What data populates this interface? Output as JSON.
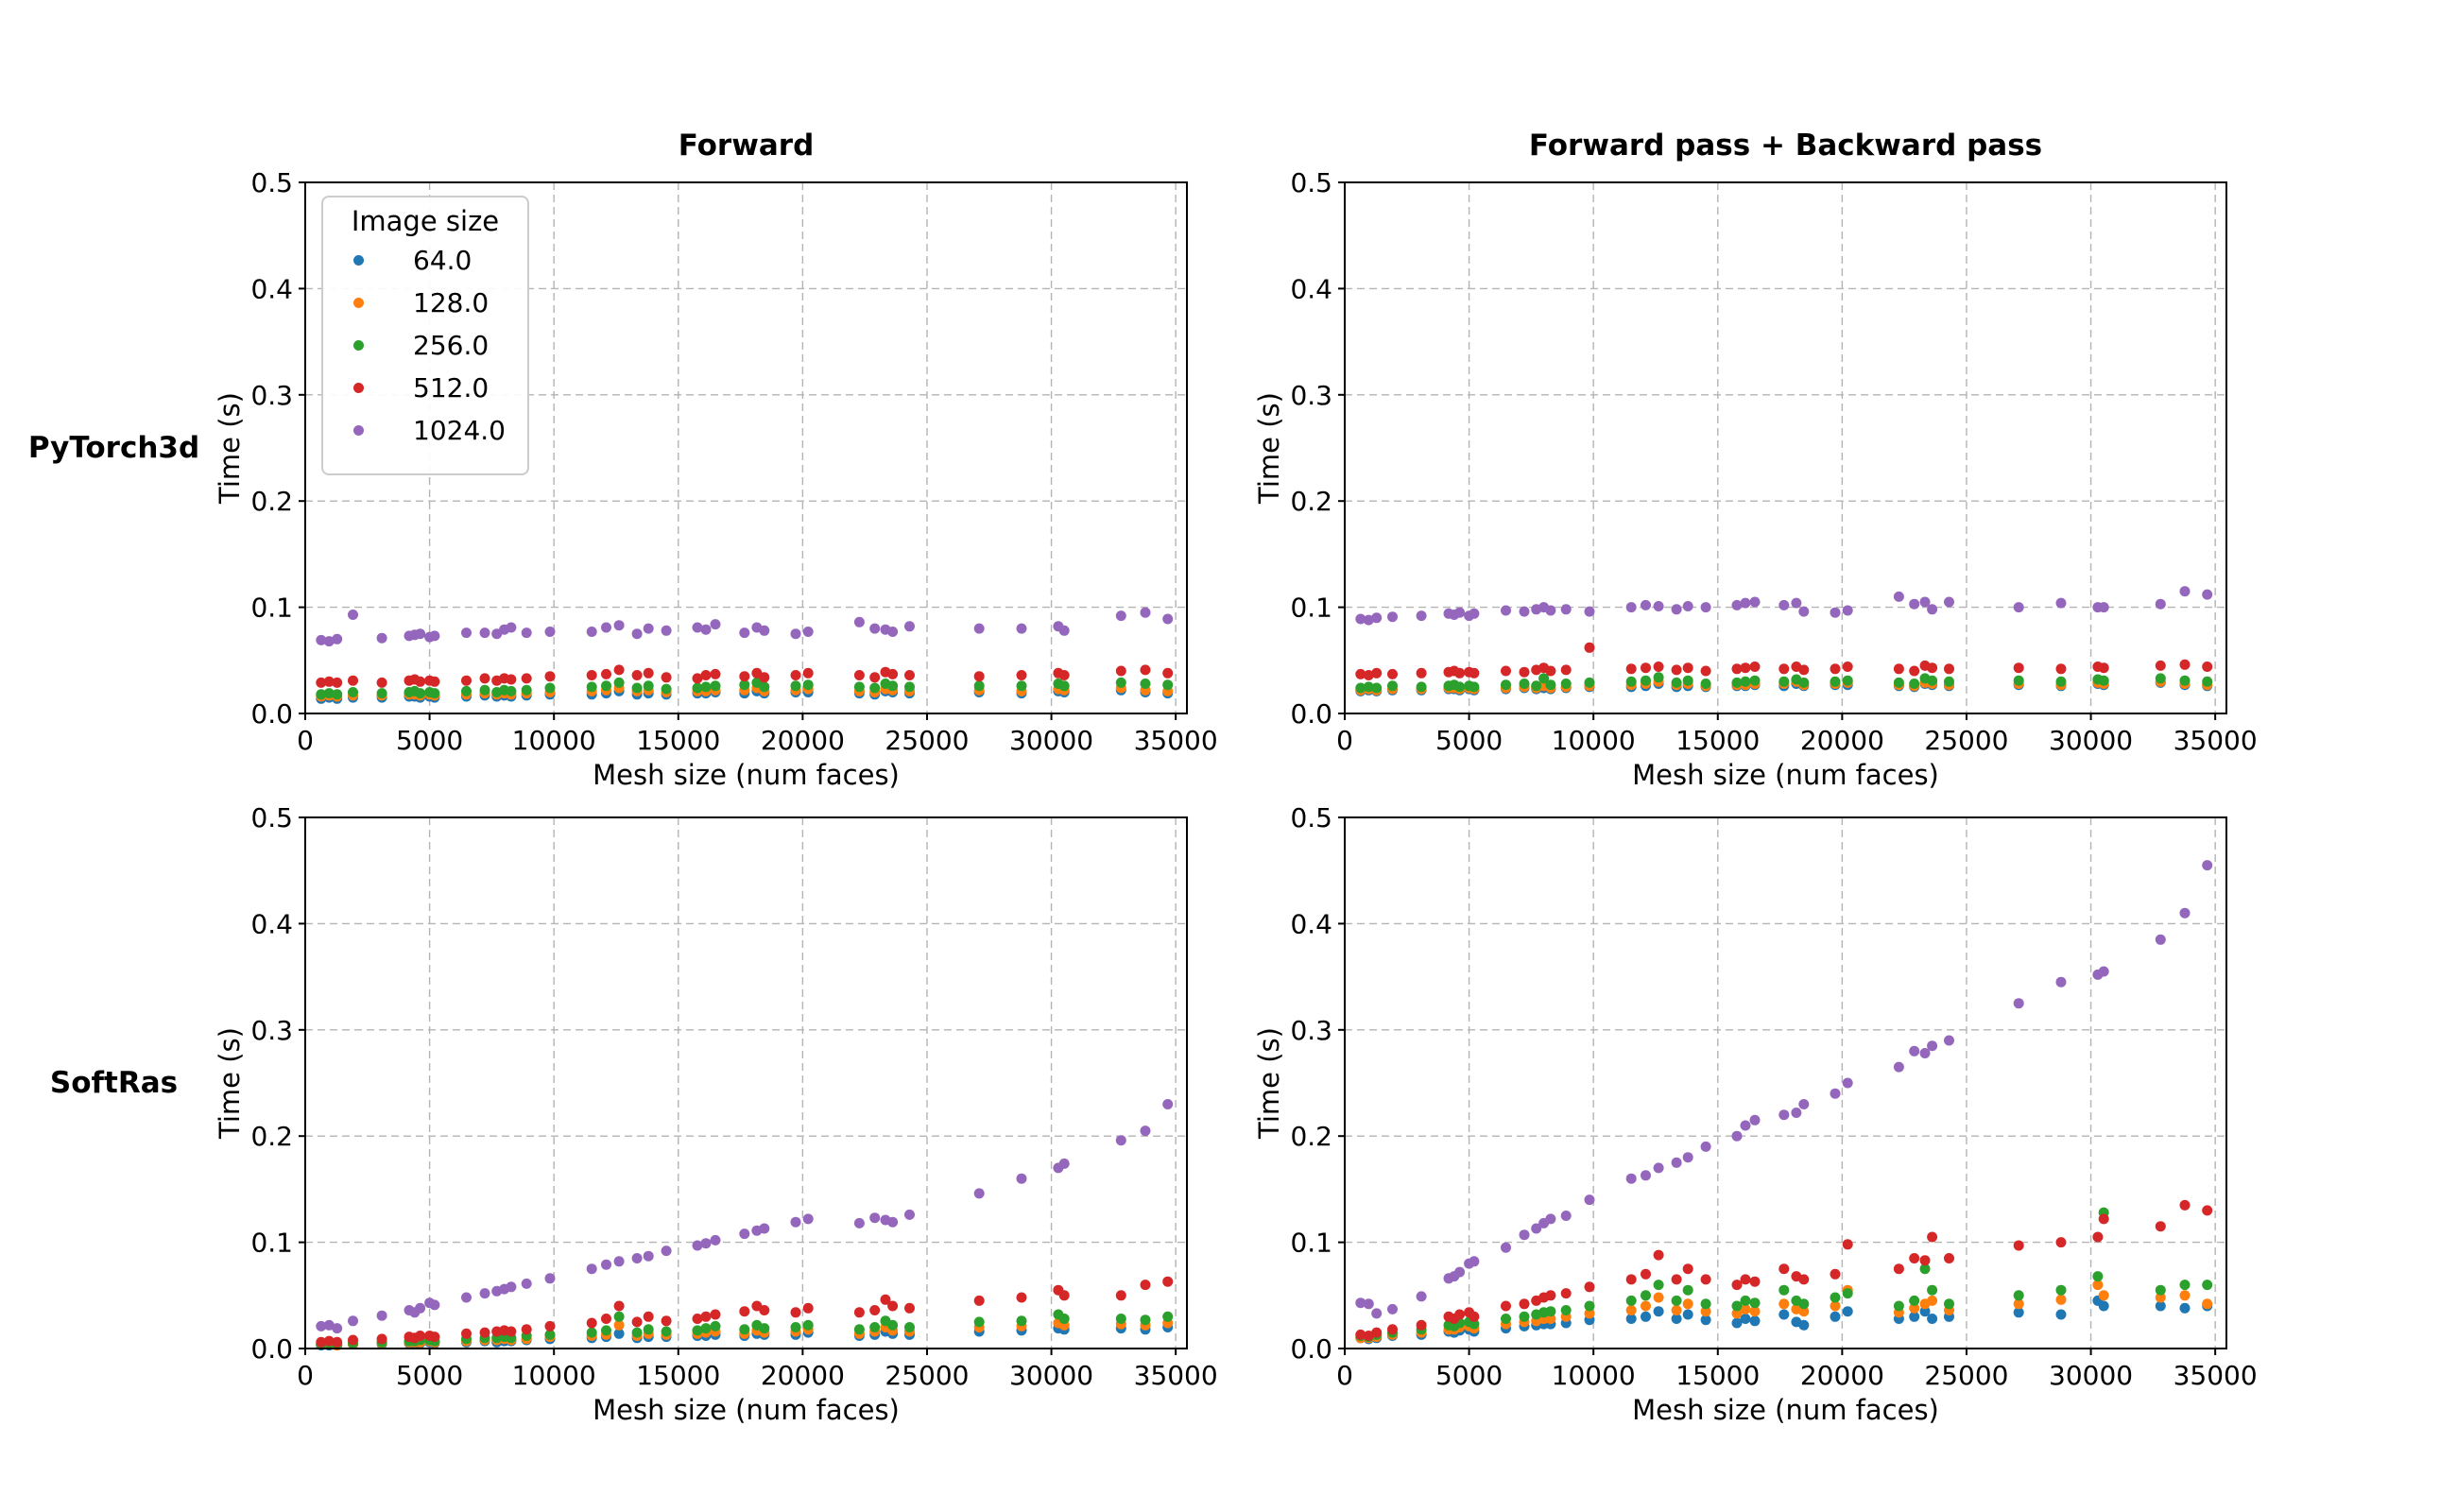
{
  "figure": {
    "col_titles": [
      "Forward",
      "Forward pass + Backward pass"
    ],
    "row_labels": [
      "PyTorch3d",
      "SoftRas"
    ]
  },
  "legend": {
    "title": "Image size",
    "entries": [
      {
        "label": "64.0",
        "color": "#1f77b4"
      },
      {
        "label": "128.0",
        "color": "#ff7f0e"
      },
      {
        "label": "256.0",
        "color": "#2ca02c"
      },
      {
        "label": "512.0",
        "color": "#d62728"
      },
      {
        "label": "1024.0",
        "color": "#9467bd"
      }
    ]
  },
  "chart_data": {
    "type": "scatter",
    "xlabel": "Mesh size (num faces)",
    "ylabel": "Time (s)",
    "xlim": [
      0,
      35450
    ],
    "ylim": [
      0,
      0.5
    ],
    "xticks": [
      0,
      5000,
      10000,
      15000,
      20000,
      25000,
      30000,
      35000
    ],
    "yticks": [
      0.0,
      0.1,
      0.2,
      0.3,
      0.4,
      0.5
    ],
    "grid": true,
    "legend_title": "Image size",
    "series_names": [
      "64.0",
      "128.0",
      "256.0",
      "512.0",
      "1024.0"
    ],
    "series_colors": {
      "64.0": "#1f77b4",
      "128.0": "#ff7f0e",
      "256.0": "#2ca02c",
      "512.0": "#d62728",
      "1024.0": "#9467bd"
    },
    "mesh_sizes": [
      640,
      960,
      1280,
      1920,
      3080,
      4180,
      4400,
      4620,
      5000,
      5200,
      6480,
      7220,
      7700,
      8000,
      8280,
      8900,
      9840,
      11520,
      12100,
      12620,
      13340,
      13800,
      14520,
      15770,
      16110,
      16490,
      17660,
      18160,
      18460,
      19720,
      20220,
      22280,
      22900,
      23330,
      23620,
      24300,
      27100,
      28800,
      30280,
      30520,
      32800,
      33780,
      34680
    ],
    "subplots": [
      {
        "row": "PyTorch3d",
        "title": "Forward",
        "series": {
          "64.0": [
            0.014,
            0.015,
            0.014,
            0.015,
            0.015,
            0.016,
            0.016,
            0.015,
            0.016,
            0.015,
            0.016,
            0.017,
            0.016,
            0.017,
            0.016,
            0.017,
            0.018,
            0.018,
            0.019,
            0.021,
            0.018,
            0.019,
            0.018,
            0.019,
            0.019,
            0.02,
            0.019,
            0.021,
            0.019,
            0.02,
            0.02,
            0.019,
            0.018,
            0.021,
            0.02,
            0.019,
            0.02,
            0.019,
            0.021,
            0.02,
            0.022,
            0.02,
            0.019
          ],
          "128.0": [
            0.016,
            0.017,
            0.016,
            0.017,
            0.017,
            0.018,
            0.018,
            0.017,
            0.018,
            0.017,
            0.018,
            0.019,
            0.018,
            0.019,
            0.018,
            0.019,
            0.02,
            0.021,
            0.022,
            0.024,
            0.021,
            0.022,
            0.02,
            0.021,
            0.021,
            0.022,
            0.022,
            0.024,
            0.021,
            0.022,
            0.023,
            0.021,
            0.02,
            0.023,
            0.022,
            0.021,
            0.022,
            0.021,
            0.023,
            0.022,
            0.024,
            0.022,
            0.021
          ],
          "256.0": [
            0.018,
            0.019,
            0.018,
            0.02,
            0.019,
            0.02,
            0.021,
            0.019,
            0.02,
            0.019,
            0.021,
            0.022,
            0.02,
            0.022,
            0.021,
            0.022,
            0.024,
            0.025,
            0.026,
            0.029,
            0.024,
            0.026,
            0.023,
            0.024,
            0.025,
            0.026,
            0.027,
            0.029,
            0.025,
            0.026,
            0.027,
            0.025,
            0.024,
            0.028,
            0.026,
            0.025,
            0.026,
            0.026,
            0.028,
            0.026,
            0.029,
            0.028,
            0.027
          ],
          "512.0": [
            0.029,
            0.03,
            0.029,
            0.031,
            0.029,
            0.031,
            0.032,
            0.03,
            0.031,
            0.03,
            0.031,
            0.033,
            0.031,
            0.033,
            0.032,
            0.033,
            0.035,
            0.036,
            0.037,
            0.041,
            0.036,
            0.038,
            0.034,
            0.033,
            0.036,
            0.037,
            0.035,
            0.038,
            0.034,
            0.036,
            0.038,
            0.036,
            0.034,
            0.039,
            0.037,
            0.036,
            0.035,
            0.036,
            0.038,
            0.036,
            0.04,
            0.041,
            0.038
          ],
          "1024.0": [
            0.069,
            0.068,
            0.07,
            0.093,
            0.071,
            0.073,
            0.074,
            0.075,
            0.072,
            0.073,
            0.076,
            0.076,
            0.075,
            0.079,
            0.081,
            0.076,
            0.077,
            0.077,
            0.081,
            0.083,
            0.075,
            0.08,
            0.078,
            0.081,
            0.079,
            0.084,
            0.076,
            0.081,
            0.078,
            0.075,
            0.077,
            0.086,
            0.08,
            0.079,
            0.077,
            0.082,
            0.08,
            0.08,
            0.082,
            0.078,
            0.092,
            0.095,
            0.089
          ]
        }
      },
      {
        "row": "PyTorch3d",
        "title": "Forward pass + Backward pass",
        "series": {
          "64.0": [
            0.021,
            0.022,
            0.021,
            0.022,
            0.022,
            0.023,
            0.023,
            0.022,
            0.023,
            0.022,
            0.023,
            0.024,
            0.023,
            0.024,
            0.023,
            0.024,
            0.025,
            0.025,
            0.026,
            0.028,
            0.025,
            0.026,
            0.025,
            0.026,
            0.026,
            0.027,
            0.026,
            0.028,
            0.026,
            0.027,
            0.027,
            0.026,
            0.025,
            0.028,
            0.027,
            0.026,
            0.027,
            0.026,
            0.028,
            0.027,
            0.029,
            0.027,
            0.026
          ],
          "128.0": [
            0.022,
            0.023,
            0.022,
            0.023,
            0.023,
            0.024,
            0.024,
            0.023,
            0.024,
            0.023,
            0.024,
            0.025,
            0.024,
            0.026,
            0.024,
            0.025,
            0.026,
            0.027,
            0.028,
            0.03,
            0.027,
            0.028,
            0.026,
            0.027,
            0.027,
            0.028,
            0.028,
            0.03,
            0.027,
            0.028,
            0.029,
            0.027,
            0.026,
            0.029,
            0.028,
            0.027,
            0.028,
            0.027,
            0.029,
            0.028,
            0.03,
            0.028,
            0.027
          ],
          "256.0": [
            0.024,
            0.025,
            0.024,
            0.026,
            0.025,
            0.026,
            0.027,
            0.025,
            0.026,
            0.025,
            0.027,
            0.028,
            0.026,
            0.033,
            0.027,
            0.028,
            0.029,
            0.03,
            0.031,
            0.034,
            0.029,
            0.031,
            0.028,
            0.029,
            0.03,
            0.031,
            0.03,
            0.032,
            0.029,
            0.03,
            0.031,
            0.029,
            0.028,
            0.033,
            0.031,
            0.03,
            0.031,
            0.03,
            0.032,
            0.031,
            0.033,
            0.031,
            0.03
          ],
          "512.0": [
            0.037,
            0.036,
            0.038,
            0.037,
            0.038,
            0.039,
            0.04,
            0.038,
            0.039,
            0.038,
            0.04,
            0.039,
            0.041,
            0.043,
            0.04,
            0.041,
            0.062,
            0.042,
            0.043,
            0.044,
            0.041,
            0.043,
            0.04,
            0.042,
            0.043,
            0.044,
            0.042,
            0.044,
            0.041,
            0.042,
            0.044,
            0.042,
            0.04,
            0.045,
            0.043,
            0.042,
            0.043,
            0.042,
            0.044,
            0.043,
            0.045,
            0.046,
            0.044
          ],
          "1024.0": [
            0.089,
            0.088,
            0.09,
            0.091,
            0.092,
            0.094,
            0.093,
            0.095,
            0.092,
            0.094,
            0.097,
            0.096,
            0.098,
            0.1,
            0.097,
            0.098,
            0.096,
            0.1,
            0.102,
            0.101,
            0.098,
            0.101,
            0.1,
            0.102,
            0.104,
            0.105,
            0.102,
            0.104,
            0.096,
            0.095,
            0.097,
            0.11,
            0.103,
            0.105,
            0.098,
            0.105,
            0.1,
            0.104,
            0.1,
            0.1,
            0.103,
            0.115,
            0.112
          ]
        }
      },
      {
        "row": "SoftRas",
        "title": "Forward",
        "series": {
          "64.0": [
            0.003,
            0.003,
            0.003,
            0.004,
            0.004,
            0.005,
            0.005,
            0.005,
            0.006,
            0.005,
            0.006,
            0.007,
            0.006,
            0.007,
            0.007,
            0.008,
            0.009,
            0.01,
            0.011,
            0.014,
            0.01,
            0.011,
            0.011,
            0.012,
            0.012,
            0.013,
            0.012,
            0.014,
            0.013,
            0.013,
            0.015,
            0.012,
            0.013,
            0.016,
            0.014,
            0.013,
            0.016,
            0.017,
            0.019,
            0.018,
            0.019,
            0.018,
            0.02
          ],
          "128.0": [
            0.004,
            0.004,
            0.003,
            0.004,
            0.005,
            0.006,
            0.006,
            0.006,
            0.007,
            0.006,
            0.007,
            0.008,
            0.008,
            0.009,
            0.008,
            0.009,
            0.011,
            0.012,
            0.013,
            0.022,
            0.012,
            0.014,
            0.013,
            0.014,
            0.015,
            0.016,
            0.014,
            0.017,
            0.015,
            0.016,
            0.018,
            0.014,
            0.016,
            0.02,
            0.017,
            0.016,
            0.02,
            0.021,
            0.024,
            0.022,
            0.023,
            0.022,
            0.024
          ],
          "256.0": [
            0.004,
            0.005,
            0.004,
            0.005,
            0.006,
            0.007,
            0.007,
            0.008,
            0.008,
            0.007,
            0.009,
            0.01,
            0.01,
            0.011,
            0.01,
            0.012,
            0.013,
            0.015,
            0.017,
            0.03,
            0.015,
            0.018,
            0.016,
            0.017,
            0.019,
            0.021,
            0.018,
            0.022,
            0.019,
            0.02,
            0.022,
            0.018,
            0.02,
            0.026,
            0.022,
            0.02,
            0.025,
            0.026,
            0.032,
            0.028,
            0.028,
            0.027,
            0.03
          ],
          "512.0": [
            0.006,
            0.007,
            0.006,
            0.008,
            0.009,
            0.011,
            0.01,
            0.012,
            0.012,
            0.011,
            0.014,
            0.015,
            0.016,
            0.017,
            0.016,
            0.018,
            0.021,
            0.024,
            0.028,
            0.04,
            0.025,
            0.03,
            0.026,
            0.028,
            0.03,
            0.032,
            0.035,
            0.04,
            0.036,
            0.034,
            0.038,
            0.034,
            0.036,
            0.046,
            0.04,
            0.038,
            0.045,
            0.048,
            0.055,
            0.05,
            0.05,
            0.06,
            0.063
          ],
          "1024.0": [
            0.021,
            0.022,
            0.019,
            0.026,
            0.031,
            0.036,
            0.034,
            0.038,
            0.043,
            0.041,
            0.048,
            0.052,
            0.054,
            0.056,
            0.058,
            0.061,
            0.066,
            0.075,
            0.079,
            0.082,
            0.085,
            0.087,
            0.092,
            0.097,
            0.099,
            0.102,
            0.108,
            0.111,
            0.113,
            0.119,
            0.122,
            0.118,
            0.123,
            0.121,
            0.119,
            0.126,
            0.146,
            0.16,
            0.17,
            0.174,
            0.196,
            0.205,
            0.23
          ]
        }
      },
      {
        "row": "SoftRas",
        "title": "Forward pass + Backward pass",
        "series": {
          "64.0": [
            0.01,
            0.009,
            0.01,
            0.012,
            0.013,
            0.016,
            0.015,
            0.017,
            0.018,
            0.016,
            0.019,
            0.021,
            0.022,
            0.023,
            0.023,
            0.024,
            0.027,
            0.028,
            0.03,
            0.035,
            0.028,
            0.032,
            0.027,
            0.024,
            0.028,
            0.026,
            0.032,
            0.025,
            0.022,
            0.03,
            0.035,
            0.028,
            0.03,
            0.035,
            0.028,
            0.03,
            0.034,
            0.032,
            0.045,
            0.04,
            0.04,
            0.038,
            0.04
          ],
          "128.0": [
            0.01,
            0.01,
            0.011,
            0.013,
            0.015,
            0.018,
            0.018,
            0.02,
            0.021,
            0.019,
            0.023,
            0.025,
            0.026,
            0.028,
            0.028,
            0.03,
            0.033,
            0.036,
            0.04,
            0.048,
            0.036,
            0.042,
            0.035,
            0.033,
            0.037,
            0.035,
            0.042,
            0.037,
            0.035,
            0.04,
            0.055,
            0.034,
            0.038,
            0.042,
            0.045,
            0.036,
            0.042,
            0.046,
            0.06,
            0.05,
            0.048,
            0.05,
            0.042
          ],
          "256.0": [
            0.012,
            0.011,
            0.013,
            0.015,
            0.018,
            0.022,
            0.021,
            0.024,
            0.025,
            0.023,
            0.028,
            0.03,
            0.032,
            0.034,
            0.035,
            0.036,
            0.04,
            0.045,
            0.05,
            0.06,
            0.045,
            0.055,
            0.042,
            0.04,
            0.045,
            0.043,
            0.055,
            0.045,
            0.042,
            0.048,
            0.052,
            0.04,
            0.045,
            0.075,
            0.055,
            0.042,
            0.05,
            0.055,
            0.068,
            0.128,
            0.055,
            0.06,
            0.06
          ],
          "512.0": [
            0.013,
            0.012,
            0.015,
            0.018,
            0.022,
            0.03,
            0.028,
            0.032,
            0.034,
            0.03,
            0.04,
            0.042,
            0.045,
            0.048,
            0.05,
            0.052,
            0.058,
            0.065,
            0.07,
            0.088,
            0.065,
            0.075,
            0.065,
            0.06,
            0.065,
            0.063,
            0.075,
            0.068,
            0.065,
            0.07,
            0.098,
            0.075,
            0.085,
            0.083,
            0.105,
            0.085,
            0.097,
            0.1,
            0.105,
            0.122,
            0.115,
            0.135,
            0.13
          ],
          "1024.0": [
            0.043,
            0.042,
            0.033,
            0.037,
            0.049,
            0.066,
            0.068,
            0.072,
            0.08,
            0.082,
            0.095,
            0.107,
            0.113,
            0.118,
            0.122,
            0.125,
            0.14,
            0.16,
            0.163,
            0.17,
            0.175,
            0.18,
            0.19,
            0.2,
            0.21,
            0.215,
            0.22,
            0.222,
            0.23,
            0.24,
            0.25,
            0.265,
            0.28,
            0.278,
            0.285,
            0.29,
            0.325,
            0.345,
            0.352,
            0.355,
            0.385,
            0.41,
            0.455
          ]
        }
      }
    ]
  }
}
